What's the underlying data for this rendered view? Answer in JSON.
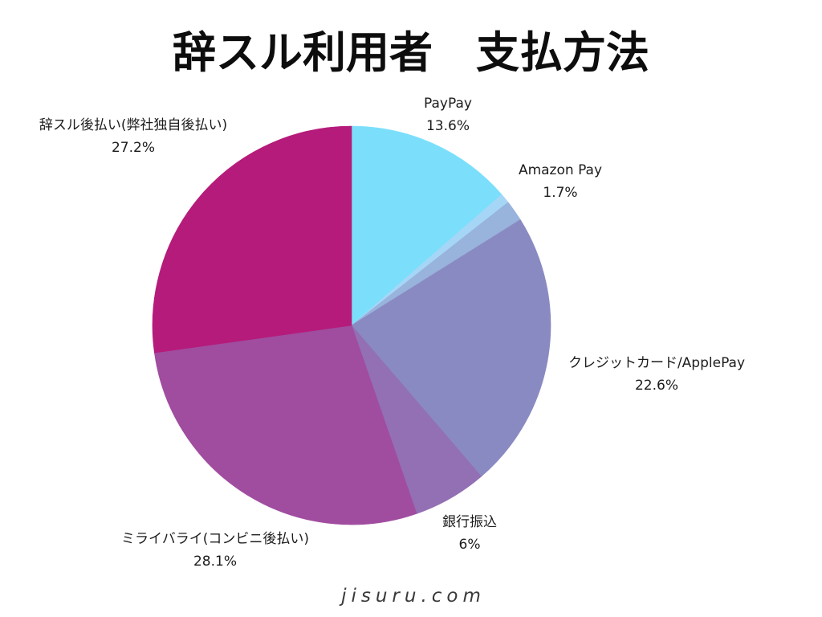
{
  "chart_data": {
    "type": "pie",
    "title": "辞スル利用者　支払方法",
    "unit": "%",
    "slices": [
      {
        "label": "PayPay",
        "value": 13.6,
        "color": "#7BDFFC"
      },
      {
        "value": 0.8,
        "color": "#A6D6F6"
      },
      {
        "label": "Amazon Pay",
        "value": 1.7,
        "color": "#98B3DC"
      },
      {
        "label": "クレジットカード/ApplePay",
        "value": 22.6,
        "color": "#8A8AC2"
      },
      {
        "label": "銀行振込",
        "value": 6,
        "color": "#936FB4"
      },
      {
        "label": "ミライバライ(コンビニ後払い)",
        "value": 28.1,
        "color": "#A04C9F"
      },
      {
        "label": "辞スル後払い(弊社独自後払い)",
        "value": 27.2,
        "color": "#B51B7A"
      }
    ]
  },
  "footer": {
    "text": "jisuru.com"
  }
}
